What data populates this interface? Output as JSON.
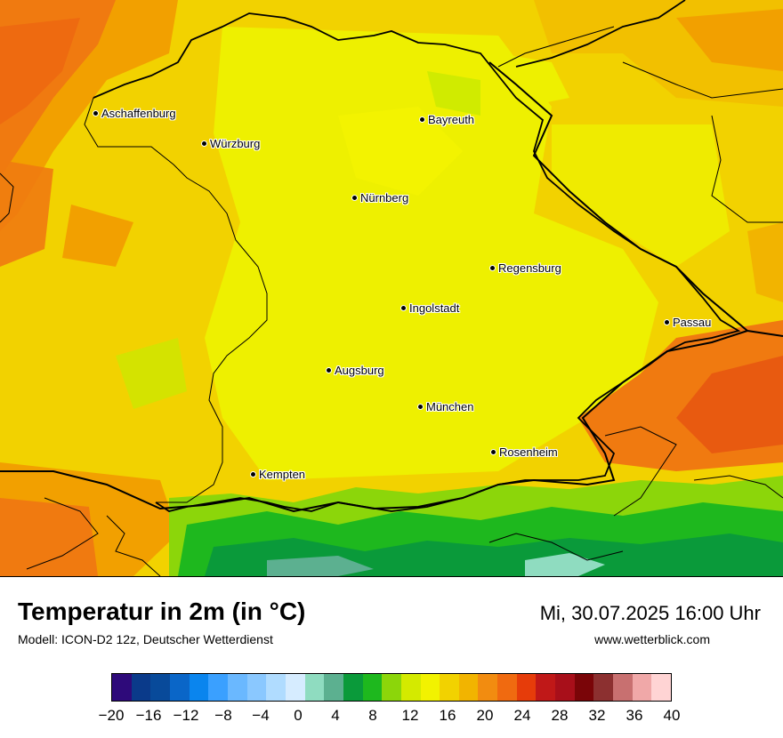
{
  "map": {
    "title": "Temperatur in 2m (in °C)",
    "model": "Modell: ICON-D2 12z, Deutscher Wetterdienst",
    "valid_time": "Mi, 30.07.2025 16:00 Uhr",
    "website": "www.wetterblick.com",
    "cities": [
      "Aschaffenburg",
      "Würzburg",
      "Bayreuth",
      "Nürnberg",
      "Regensburg",
      "Ingolstadt",
      "Passau",
      "Augsburg",
      "München",
      "Rosenheim",
      "Kempten"
    ]
  },
  "legend": {
    "unit": "°C",
    "tick_labels": [
      "−20",
      "−16",
      "−12",
      "−8",
      "−4",
      "0",
      "4",
      "8",
      "12",
      "16",
      "20",
      "24",
      "28",
      "32",
      "36",
      "40"
    ],
    "colors": [
      "#2e0a7a",
      "#0a3a8a",
      "#084a9a",
      "#0a66c8",
      "#0a85ee",
      "#3aa0ff",
      "#6ab8ff",
      "#8ac8ff",
      "#b0dcff",
      "#d6ecff",
      "#8fdcc0",
      "#5cb090",
      "#0a9a3a",
      "#1eb81e",
      "#8cd60a",
      "#d4ea00",
      "#f2f200",
      "#f2d200",
      "#f2b400",
      "#f28c10",
      "#f06a10",
      "#e63c0a",
      "#c01818",
      "#a80f1a",
      "#7a0508",
      "#8c3030",
      "#c87070",
      "#f0a8a8",
      "#ffd4d4"
    ]
  }
}
